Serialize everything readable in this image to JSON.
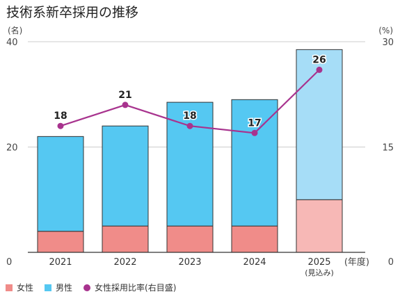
{
  "chart_data": {
    "type": "bar",
    "title": "技術系新卒採用の推移",
    "y_unit_left": "(名)",
    "y_unit_right": "(%)",
    "x_unit": "(年度)",
    "categories": [
      "2021",
      "2022",
      "2023",
      "2024",
      "2025"
    ],
    "category_notes": [
      "",
      "",
      "",
      "",
      "(見込み)"
    ],
    "ylim_left": [
      0,
      40
    ],
    "yticks_left": [
      0,
      20,
      40
    ],
    "ylim_right": [
      0,
      30
    ],
    "yticks_right": [
      0,
      15,
      30
    ],
    "stacked": true,
    "series": [
      {
        "name": "女性",
        "axis": "left",
        "values": [
          4,
          5,
          5,
          5,
          10
        ],
        "color": "#F08C89",
        "projected_color": "#F7B8B6"
      },
      {
        "name": "男性",
        "axis": "left",
        "values": [
          18,
          19,
          23.5,
          24,
          28.5
        ],
        "color": "#55C8F2",
        "projected_color": "#A6DDF7"
      },
      {
        "name": "女性採用比率(右目盛)",
        "type": "line",
        "axis": "right",
        "values": [
          18,
          21,
          18,
          17,
          26
        ],
        "labels": [
          "18",
          "21",
          "18",
          "17",
          "26"
        ],
        "color": "#A8338E"
      }
    ],
    "legend_position": "bottom-left",
    "grid": "horizontal"
  }
}
